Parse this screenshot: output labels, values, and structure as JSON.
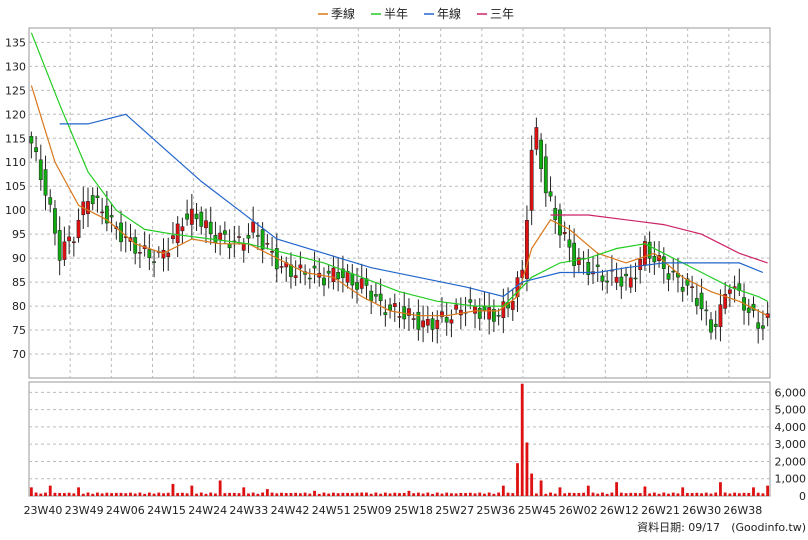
{
  "chart_data": {
    "type": "candlestick",
    "legend": [
      "季線",
      "半年",
      "年線",
      "三年"
    ],
    "colors": {
      "up": "#dd1111",
      "down": "#11aa11",
      "ma_quarter": "#d9771a",
      "ma_half": "#22cc22",
      "ma_year": "#2266cc",
      "ma_3y": "#cc2266",
      "volume": "#dd1111",
      "grid": "#bbbbbb"
    },
    "price_axis": {
      "range": [
        65,
        138
      ],
      "ticks": [
        70,
        75,
        80,
        85,
        90,
        95,
        100,
        105,
        110,
        115,
        120,
        125,
        130,
        135
      ]
    },
    "volume_axis": {
      "range": [
        0,
        6600
      ],
      "ticks": [
        0,
        1000,
        2000,
        3000,
        4000,
        5000,
        6000
      ],
      "tick_labels": [
        "0",
        "1,000",
        "2,000",
        "3,000",
        "4,000",
        "5,000",
        "6,000"
      ]
    },
    "x_labels": [
      "23W40",
      "23W49",
      "24W06",
      "24W15",
      "24W24",
      "24W33",
      "24W42",
      "24W51",
      "25W09",
      "25W18",
      "25W27",
      "25W36",
      "25W45",
      "26W02",
      "26W12",
      "26W21",
      "26W30",
      "26W38"
    ],
    "weeks": 157,
    "close_points": [
      [
        0,
        114
      ],
      [
        3,
        104
      ],
      [
        6,
        91
      ],
      [
        9,
        95
      ],
      [
        12,
        103
      ],
      [
        15,
        100
      ],
      [
        18,
        96
      ],
      [
        21,
        93
      ],
      [
        24,
        91
      ],
      [
        27,
        90
      ],
      [
        30,
        94
      ],
      [
        32,
        98
      ],
      [
        35,
        99
      ],
      [
        38,
        95
      ],
      [
        41,
        94
      ],
      [
        44,
        93
      ],
      [
        47,
        96
      ],
      [
        50,
        92
      ],
      [
        53,
        88
      ],
      [
        56,
        87
      ],
      [
        59,
        87
      ],
      [
        62,
        86
      ],
      [
        65,
        87
      ],
      [
        68,
        85
      ],
      [
        71,
        84
      ],
      [
        74,
        80
      ],
      [
        77,
        79
      ],
      [
        80,
        78
      ],
      [
        83,
        76
      ],
      [
        86,
        77
      ],
      [
        89,
        78
      ],
      [
        92,
        80
      ],
      [
        95,
        79
      ],
      [
        98,
        78
      ],
      [
        101,
        80
      ],
      [
        104,
        87
      ],
      [
        106,
        112
      ],
      [
        107,
        116
      ],
      [
        109,
        104
      ],
      [
        112,
        96
      ],
      [
        115,
        90
      ],
      [
        118,
        88
      ],
      [
        121,
        86
      ],
      [
        124,
        86
      ],
      [
        127,
        85
      ],
      [
        130,
        92
      ],
      [
        133,
        89
      ],
      [
        136,
        86
      ],
      [
        139,
        84
      ],
      [
        142,
        80
      ],
      [
        144,
        75
      ],
      [
        146,
        79
      ],
      [
        148,
        85
      ],
      [
        150,
        82
      ],
      [
        152,
        79
      ],
      [
        154,
        76
      ],
      [
        156,
        77
      ]
    ],
    "ma_quarter": [
      [
        0,
        126
      ],
      [
        5,
        110
      ],
      [
        10,
        101
      ],
      [
        16,
        98
      ],
      [
        22,
        93
      ],
      [
        28,
        91
      ],
      [
        34,
        94
      ],
      [
        40,
        93
      ],
      [
        46,
        93
      ],
      [
        52,
        90
      ],
      [
        58,
        87
      ],
      [
        64,
        86
      ],
      [
        70,
        82
      ],
      [
        76,
        79
      ],
      [
        82,
        78
      ],
      [
        88,
        78
      ],
      [
        94,
        79
      ],
      [
        99,
        79
      ],
      [
        103,
        82
      ],
      [
        106,
        92
      ],
      [
        110,
        98
      ],
      [
        114,
        96
      ],
      [
        120,
        91
      ],
      [
        126,
        89
      ],
      [
        132,
        91
      ],
      [
        138,
        86
      ],
      [
        144,
        83
      ],
      [
        150,
        81
      ],
      [
        156,
        78
      ]
    ],
    "ma_half": [
      [
        0,
        137
      ],
      [
        6,
        122
      ],
      [
        12,
        108
      ],
      [
        18,
        100
      ],
      [
        24,
        96
      ],
      [
        30,
        95
      ],
      [
        38,
        94
      ],
      [
        46,
        93
      ],
      [
        54,
        91
      ],
      [
        62,
        89
      ],
      [
        70,
        86
      ],
      [
        78,
        83
      ],
      [
        86,
        81
      ],
      [
        94,
        80
      ],
      [
        100,
        80
      ],
      [
        106,
        86
      ],
      [
        112,
        89
      ],
      [
        118,
        90
      ],
      [
        124,
        92
      ],
      [
        130,
        93
      ],
      [
        136,
        90
      ],
      [
        142,
        87
      ],
      [
        148,
        84
      ],
      [
        154,
        82
      ],
      [
        156,
        81
      ]
    ],
    "ma_year": [
      [
        6,
        118
      ],
      [
        12,
        118
      ],
      [
        20,
        120
      ],
      [
        28,
        113
      ],
      [
        36,
        106
      ],
      [
        44,
        100
      ],
      [
        52,
        94
      ],
      [
        62,
        91
      ],
      [
        72,
        88
      ],
      [
        82,
        86
      ],
      [
        92,
        84
      ],
      [
        100,
        82
      ],
      [
        104,
        85
      ],
      [
        112,
        87
      ],
      [
        120,
        87
      ],
      [
        126,
        88
      ],
      [
        134,
        89
      ],
      [
        142,
        89
      ],
      [
        150,
        89
      ],
      [
        155,
        87
      ]
    ],
    "ma_3y": [
      [
        110,
        99
      ],
      [
        118,
        99
      ],
      [
        126,
        98
      ],
      [
        134,
        97
      ],
      [
        142,
        95
      ],
      [
        150,
        91
      ],
      [
        156,
        89
      ]
    ],
    "volume_spikes": [
      [
        0,
        500
      ],
      [
        4,
        600
      ],
      [
        10,
        500
      ],
      [
        30,
        700
      ],
      [
        34,
        600
      ],
      [
        40,
        900
      ],
      [
        45,
        500
      ],
      [
        50,
        400
      ],
      [
        60,
        300
      ],
      [
        70,
        200
      ],
      [
        80,
        300
      ],
      [
        90,
        150
      ],
      [
        100,
        600
      ],
      [
        103,
        1900
      ],
      [
        104,
        6500
      ],
      [
        105,
        3100
      ],
      [
        106,
        1300
      ],
      [
        108,
        900
      ],
      [
        112,
        500
      ],
      [
        118,
        600
      ],
      [
        124,
        800
      ],
      [
        130,
        550
      ],
      [
        138,
        500
      ],
      [
        146,
        800
      ],
      [
        153,
        500
      ],
      [
        156,
        600
      ]
    ]
  },
  "date_label": "資料日期: 09/17",
  "source_label": "(Goodinfo.tw)"
}
